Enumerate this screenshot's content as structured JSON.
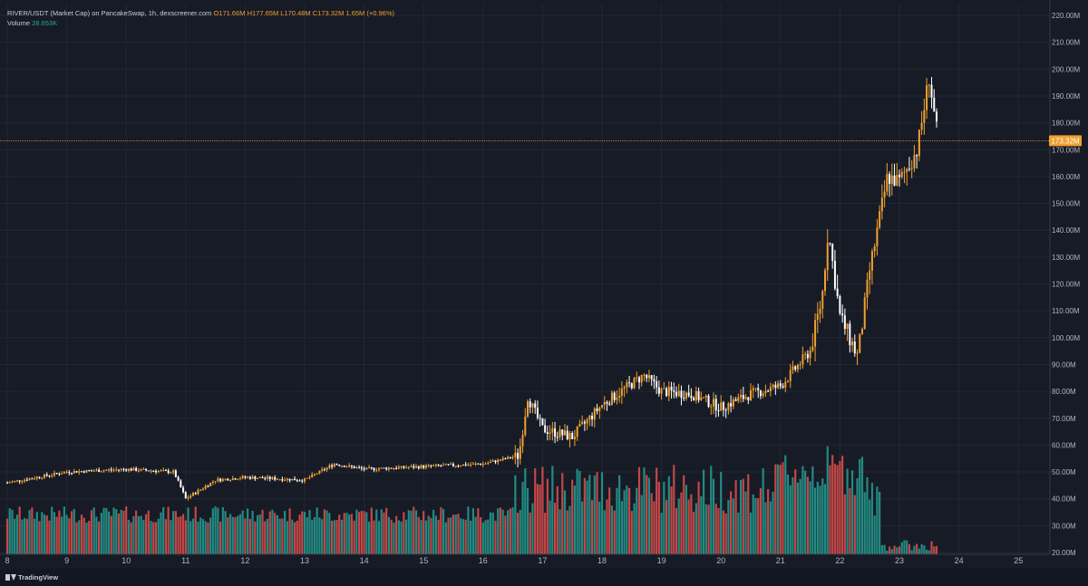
{
  "legend": {
    "symbol": "RIVER/USDT (Market Cap) on PancakeSwap, 1h, dexscreener.com",
    "open": "O171.66M",
    "high": "H177.65M",
    "low": "L170.48M",
    "close": "C173.32M",
    "change": "1.65M (+0.96%)",
    "volume_label": "Volume",
    "volume_value": "28.653K"
  },
  "price_tag": "173.32M",
  "branding": "TradingView",
  "colors": {
    "background": "#171b26",
    "up": "#f0a030",
    "down": "#ffffff",
    "vol_up": "#26a69a",
    "vol_down": "#ef5350",
    "last_price": "#f0a030"
  },
  "chart_data": {
    "type": "candlestick",
    "xlabel": "",
    "ylabel": "",
    "x_ticks": [
      "8",
      "9",
      "10",
      "11",
      "12",
      "13",
      "14",
      "15",
      "16",
      "17",
      "18",
      "19",
      "20",
      "21",
      "22",
      "23",
      "24",
      "25"
    ],
    "y_ticks": [
      "220.00M",
      "210.00M",
      "200.00M",
      "190.00M",
      "180.00M",
      "170.00M",
      "160.00M",
      "150.00M",
      "140.00M",
      "130.00M",
      "120.00M",
      "110.00M",
      "100.00M",
      "90.00M",
      "80.00M",
      "70.00M",
      "60.00M",
      "50.00M",
      "40.00M",
      "30.00M",
      "20.00M"
    ],
    "ylim": [
      20,
      220
    ],
    "last_price": 173.32,
    "price_path_day_value": [
      [
        8.0,
        46
      ],
      [
        9.0,
        50
      ],
      [
        10.0,
        51
      ],
      [
        10.8,
        50
      ],
      [
        11.0,
        40
      ],
      [
        11.5,
        47
      ],
      [
        12.0,
        48
      ],
      [
        13.0,
        47
      ],
      [
        13.5,
        53
      ],
      [
        14.0,
        51
      ],
      [
        15.0,
        52
      ],
      [
        16.0,
        53
      ],
      [
        16.6,
        56
      ],
      [
        16.75,
        78
      ],
      [
        17.0,
        66
      ],
      [
        17.5,
        63
      ],
      [
        18.0,
        75
      ],
      [
        18.7,
        86
      ],
      [
        19.0,
        80
      ],
      [
        19.5,
        79
      ],
      [
        20.0,
        74
      ],
      [
        20.5,
        79
      ],
      [
        21.0,
        82
      ],
      [
        21.5,
        95
      ],
      [
        21.7,
        115
      ],
      [
        21.8,
        140
      ],
      [
        22.0,
        108
      ],
      [
        22.3,
        93
      ],
      [
        22.5,
        125
      ],
      [
        22.8,
        160
      ],
      [
        23.0,
        158
      ],
      [
        23.3,
        170
      ],
      [
        23.5,
        197
      ],
      [
        23.65,
        173
      ]
    ],
    "volume_series": "hourly volume bars, green when candle up, red when down"
  }
}
